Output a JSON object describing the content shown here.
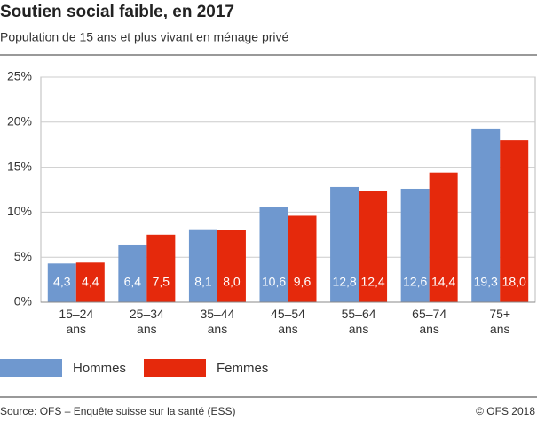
{
  "chart_data": {
    "type": "bar",
    "title": "Soutien social faible, en 2017",
    "subtitle": "Population de 15 ans et plus vivant en ménage privé",
    "categories": [
      "15–24 ans",
      "25–34 ans",
      "35–44 ans",
      "45–54 ans",
      "55–64 ans",
      "65–74 ans",
      "75+ ans"
    ],
    "series": [
      {
        "name": "Hommes",
        "color": "#6f98cf",
        "values": [
          4.3,
          6.4,
          8.1,
          10.6,
          12.8,
          12.6,
          19.3
        ],
        "value_labels": [
          "4,3",
          "6,4",
          "8,1",
          "10,6",
          "12,8",
          "12,6",
          "19,3"
        ]
      },
      {
        "name": "Femmes",
        "color": "#e5290c",
        "values": [
          4.4,
          7.5,
          8.0,
          9.6,
          12.4,
          14.4,
          18.0
        ],
        "value_labels": [
          "4,4",
          "7,5",
          "8,0",
          "9,6",
          "12,4",
          "14,4",
          "18,0"
        ]
      }
    ],
    "ylim": [
      0,
      25
    ],
    "yticks": [
      {
        "value": 0,
        "label": "0%"
      },
      {
        "value": 5,
        "label": "5%"
      },
      {
        "value": 10,
        "label": "10%"
      },
      {
        "value": 15,
        "label": "15%"
      },
      {
        "value": 20,
        "label": "20%"
      },
      {
        "value": 25,
        "label": "25%"
      }
    ],
    "grid": true,
    "source": "Source: OFS – Enquête suisse sur la santé (ESS)",
    "copyright": "© OFS 2018"
  }
}
